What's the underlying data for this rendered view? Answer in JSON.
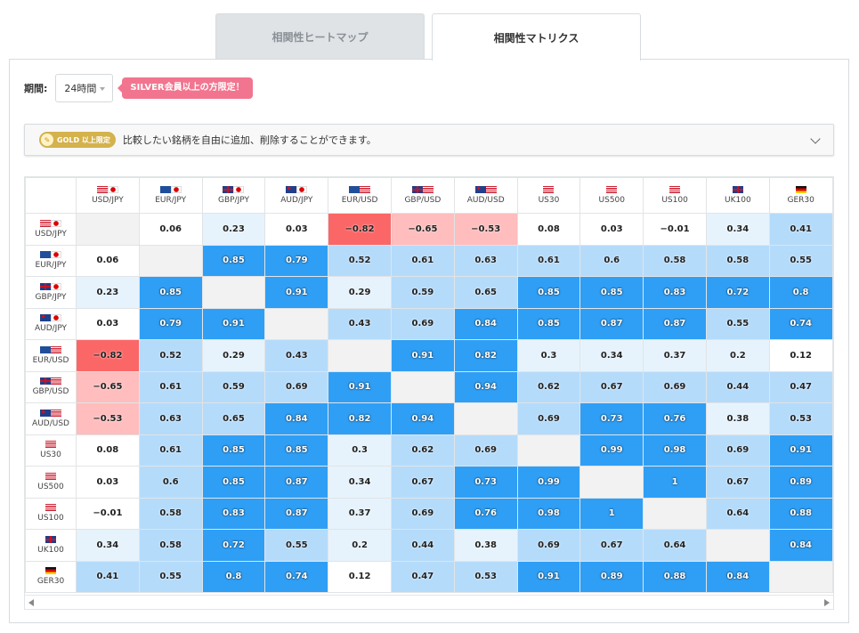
{
  "tabs": [
    {
      "label": "相関性ヒートマップ",
      "active": false
    },
    {
      "label": "相関性マトリクス",
      "active": true
    }
  ],
  "period": {
    "label": "期間:",
    "selected": "24時間",
    "badge": "SILVER会員以上の方限定！"
  },
  "gold": {
    "badge": "GOLD 以上限定",
    "text": "比較したい銘柄を自由に追加、削除することができます。"
  },
  "colors": {
    "strong_positive": "#2f9ff5",
    "medium_positive": "#b5dbfb",
    "weak_positive": "#e6f3fd",
    "neutral": "#ffffff",
    "weak_negative": "#ffbdbd",
    "strong_negative": "#fb6767",
    "diagonal": "#f2f2f2"
  },
  "matrix": {
    "symbols": [
      {
        "label": "USD/JPY",
        "flags": [
          "us",
          "jp"
        ]
      },
      {
        "label": "EUR/JPY",
        "flags": [
          "eu",
          "jp"
        ]
      },
      {
        "label": "GBP/JPY",
        "flags": [
          "gb",
          "jp"
        ]
      },
      {
        "label": "AUD/JPY",
        "flags": [
          "au",
          "jp"
        ]
      },
      {
        "label": "EUR/USD",
        "flags": [
          "eu",
          "us"
        ]
      },
      {
        "label": "GBP/USD",
        "flags": [
          "gb",
          "us"
        ]
      },
      {
        "label": "AUD/USD",
        "flags": [
          "au",
          "us"
        ]
      },
      {
        "label": "US30",
        "flags": [
          "us"
        ]
      },
      {
        "label": "US500",
        "flags": [
          "us"
        ]
      },
      {
        "label": "US100",
        "flags": [
          "us"
        ]
      },
      {
        "label": "UK100",
        "flags": [
          "gb"
        ]
      },
      {
        "label": "GER30",
        "flags": [
          "de"
        ]
      }
    ],
    "values": [
      [
        null,
        "0.06",
        "0.23",
        "0.03",
        "−0.82",
        "−0.65",
        "−0.53",
        "0.08",
        "0.03",
        "−0.01",
        "0.34",
        "0.41"
      ],
      [
        "0.06",
        null,
        "0.85",
        "0.79",
        "0.52",
        "0.61",
        "0.63",
        "0.61",
        "0.6",
        "0.58",
        "0.58",
        "0.55"
      ],
      [
        "0.23",
        "0.85",
        null,
        "0.91",
        "0.29",
        "0.59",
        "0.65",
        "0.85",
        "0.85",
        "0.83",
        "0.72",
        "0.8"
      ],
      [
        "0.03",
        "0.79",
        "0.91",
        null,
        "0.43",
        "0.69",
        "0.84",
        "0.85",
        "0.87",
        "0.87",
        "0.55",
        "0.74"
      ],
      [
        "−0.82",
        "0.52",
        "0.29",
        "0.43",
        null,
        "0.91",
        "0.82",
        "0.3",
        "0.34",
        "0.37",
        "0.2",
        "0.12"
      ],
      [
        "−0.65",
        "0.61",
        "0.59",
        "0.69",
        "0.91",
        null,
        "0.94",
        "0.62",
        "0.67",
        "0.69",
        "0.44",
        "0.47"
      ],
      [
        "−0.53",
        "0.63",
        "0.65",
        "0.84",
        "0.82",
        "0.94",
        null,
        "0.69",
        "0.73",
        "0.76",
        "0.38",
        "0.53"
      ],
      [
        "0.08",
        "0.61",
        "0.85",
        "0.85",
        "0.3",
        "0.62",
        "0.69",
        null,
        "0.99",
        "0.98",
        "0.69",
        "0.91"
      ],
      [
        "0.03",
        "0.6",
        "0.85",
        "0.87",
        "0.34",
        "0.67",
        "0.73",
        "0.99",
        null,
        "1",
        "0.67",
        "0.89"
      ],
      [
        "−0.01",
        "0.58",
        "0.83",
        "0.87",
        "0.37",
        "0.69",
        "0.76",
        "0.98",
        "1",
        null,
        "0.64",
        "0.88"
      ],
      [
        "0.34",
        "0.58",
        "0.72",
        "0.55",
        "0.2",
        "0.44",
        "0.38",
        "0.69",
        "0.67",
        "0.64",
        null,
        "0.84"
      ],
      [
        "0.41",
        "0.55",
        "0.8",
        "0.74",
        "0.12",
        "0.47",
        "0.53",
        "0.91",
        "0.89",
        "0.88",
        "0.84",
        null
      ]
    ]
  }
}
